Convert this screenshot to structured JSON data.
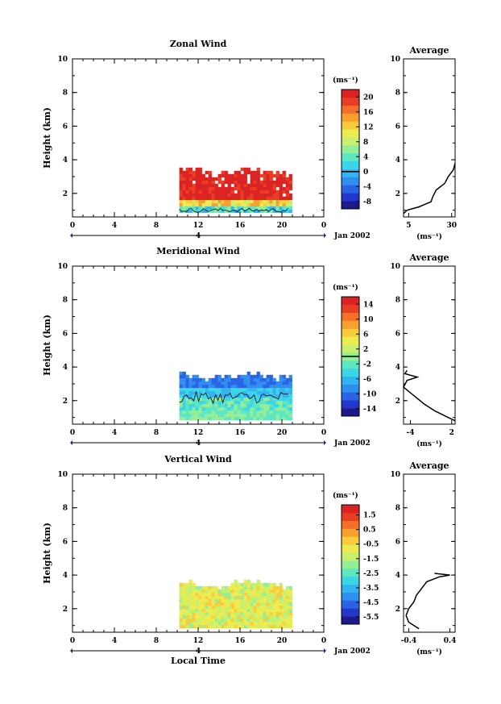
{
  "footer_label": "Local Time",
  "date_label": "Jan 2002",
  "day_marker": "4",
  "colors": {
    "palette": [
      "#1d1b8c",
      "#2337c8",
      "#2a64e6",
      "#2f8ff0",
      "#33b4f2",
      "#3ad6e8",
      "#5de6c2",
      "#93ee96",
      "#c6f06e",
      "#ecec50",
      "#f8cc3a",
      "#f8a02e",
      "#f47028",
      "#e83e24",
      "#dc2222"
    ]
  },
  "chart_data": [
    {
      "type": "heatmap",
      "title": "Zonal Wind",
      "ylabel": "Height (km)",
      "xlim": [
        0,
        24
      ],
      "ylim": [
        0.6,
        10
      ],
      "x_ticks": [
        "0",
        "4",
        "8",
        "12",
        "16",
        "20",
        "0"
      ],
      "y_ticks": [
        "2",
        "4",
        "6",
        "8",
        "10"
      ],
      "data_extent": {
        "x": [
          10.2,
          20.8
        ],
        "y": [
          0.8,
          3.2
        ]
      },
      "colorbar": {
        "unit": "(ms⁻¹)",
        "ticks": [
          "20",
          "16",
          "12",
          "8",
          "4",
          "0",
          "-4",
          "-8"
        ],
        "range": [
          -10,
          22
        ],
        "contour_value": 0
      },
      "field_description": "strong easterly 20+ ms-1 above 1.5 km, weaker near surface",
      "profile": {
        "title": "Average",
        "xlabel": "(ms⁻¹)",
        "x_ticks": [
          "5",
          "30"
        ],
        "xlim": [
          2,
          32
        ],
        "y_ticks": [
          "2",
          "4",
          "6",
          "8",
          "10"
        ],
        "height": [
          0.8,
          1.0,
          1.2,
          1.5,
          1.8,
          2.2,
          2.6,
          3.0,
          3.4,
          3.8
        ],
        "value": [
          2,
          4,
          11,
          18,
          19,
          21,
          26,
          28,
          31,
          32
        ]
      }
    },
    {
      "type": "heatmap",
      "title": "Meridional Wind",
      "ylabel": "Height (km)",
      "xlim": [
        0,
        24
      ],
      "ylim": [
        0.6,
        10
      ],
      "x_ticks": [
        "0",
        "4",
        "8",
        "12",
        "16",
        "20",
        "0"
      ],
      "y_ticks": [
        "2",
        "4",
        "6",
        "8",
        "10"
      ],
      "data_extent": {
        "x": [
          10.2,
          20.8
        ],
        "y": [
          0.8,
          3.4
        ]
      },
      "colorbar": {
        "unit": "(ms⁻¹)",
        "ticks": [
          "14",
          "10",
          "6",
          "2",
          "-2",
          "-6",
          "-10",
          "-14"
        ],
        "range": [
          -16,
          16
        ],
        "contour_value": 0
      },
      "field_description": "southerly near surface, northerly above about 2.5 km",
      "profile": {
        "title": "Average",
        "xlabel": "(ms⁻¹)",
        "x_ticks": [
          "-4",
          "2"
        ],
        "xlim": [
          -5,
          2.5
        ],
        "y_ticks": [
          "2",
          "4",
          "6",
          "8",
          "10"
        ],
        "height": [
          0.8,
          1.0,
          1.4,
          1.8,
          2.3,
          2.8,
          3.2,
          3.4,
          3.6,
          3.8
        ],
        "value": [
          2.5,
          1.5,
          -0.5,
          -2.0,
          -3.5,
          -5.0,
          -4.5,
          -3.0,
          -4.8,
          -4.5
        ]
      }
    },
    {
      "type": "heatmap",
      "title": "Vertical Wind",
      "ylabel": "Height (km)",
      "xlim": [
        0,
        24
      ],
      "ylim": [
        0.6,
        10
      ],
      "x_ticks": [
        "0",
        "4",
        "8",
        "12",
        "16",
        "20",
        "0"
      ],
      "y_ticks": [
        "2",
        "4",
        "6",
        "8",
        "10"
      ],
      "data_extent": {
        "x": [
          10.2,
          20.8
        ],
        "y": [
          0.8,
          3.4
        ]
      },
      "colorbar": {
        "unit": "(ms⁻¹)",
        "ticks": [
          "1.5",
          "0.5",
          "-0.5",
          "-1.5",
          "-2.5",
          "-3.5",
          "-4.5",
          "-5.5"
        ],
        "range": [
          -6,
          2.2
        ]
      },
      "field_description": "near-zero vertical velocity, mostly -0.5 to 0.5 ms-1",
      "profile": {
        "title": "Average",
        "xlabel": "(ms⁻¹)",
        "x_ticks": [
          "-0.4",
          "0.4"
        ],
        "xlim": [
          -0.5,
          0.5
        ],
        "y_ticks": [
          "2",
          "4",
          "6",
          "8",
          "10"
        ],
        "height": [
          0.8,
          1.2,
          1.6,
          2.0,
          2.4,
          2.8,
          3.2,
          3.6,
          3.9,
          4.0,
          4.1
        ],
        "value": [
          -0.2,
          -0.4,
          -0.45,
          -0.4,
          -0.3,
          -0.25,
          -0.15,
          -0.05,
          0.2,
          0.4,
          0.1
        ]
      }
    }
  ]
}
